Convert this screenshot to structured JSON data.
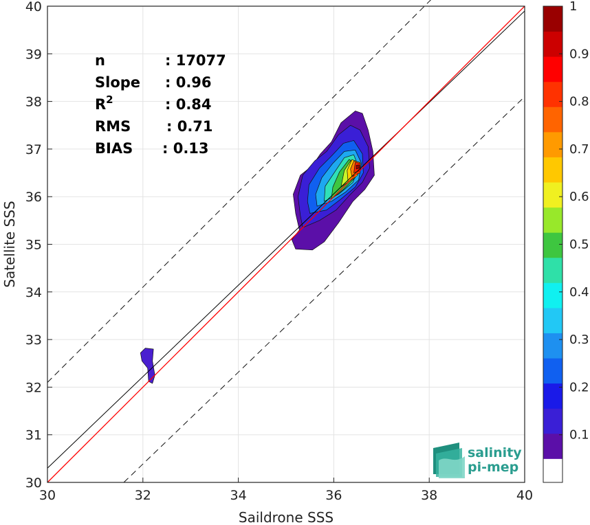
{
  "chart_data": {
    "type": "contour-scatter",
    "xlabel": "Saildrone SSS",
    "ylabel": "Satellite SSS",
    "xlim": [
      30,
      40
    ],
    "ylim": [
      30,
      40
    ],
    "xticks": [
      30,
      32,
      34,
      36,
      38,
      40
    ],
    "yticks": [
      30,
      31,
      32,
      33,
      34,
      35,
      36,
      37,
      38,
      39,
      40
    ],
    "grid": true,
    "stats": [
      {
        "key": "n",
        "sup": "",
        "value": ": 17077"
      },
      {
        "key": "Slope",
        "sup": "",
        "value": ": 0.96"
      },
      {
        "key": "R",
        "sup": "2",
        "value": ": 0.84"
      },
      {
        "key": "RMS",
        "sup": "",
        "value": ": 0.71"
      },
      {
        "key": "BIAS",
        "sup": "",
        "value": ": 0.13"
      }
    ],
    "lines": {
      "identity": {
        "from": [
          30,
          30
        ],
        "to": [
          40,
          40
        ],
        "color": "#ff0000"
      },
      "regression": {
        "from": [
          30,
          30.3
        ],
        "to": [
          40,
          39.9
        ],
        "color": "#000000"
      },
      "upper_bound": {
        "from": [
          30,
          32.1
        ],
        "to": [
          40,
          42.1
        ],
        "style": "dashed"
      },
      "lower_bound": {
        "from": [
          31.6,
          30
        ],
        "to": [
          40,
          38.1
        ],
        "style": "dashed"
      }
    },
    "contours": [
      {
        "level": 0.05,
        "color": "#5b0fa8",
        "points": [
          [
            35.2,
            34.9
          ],
          [
            35.55,
            34.88
          ],
          [
            35.8,
            35.05
          ],
          [
            36.1,
            35.45
          ],
          [
            36.4,
            35.9
          ],
          [
            36.65,
            36.15
          ],
          [
            36.85,
            36.45
          ],
          [
            36.82,
            36.95
          ],
          [
            36.72,
            37.4
          ],
          [
            36.6,
            37.75
          ],
          [
            36.45,
            37.8
          ],
          [
            36.15,
            37.55
          ],
          [
            35.95,
            37.15
          ],
          [
            35.72,
            36.9
          ],
          [
            35.55,
            36.65
          ],
          [
            35.3,
            36.45
          ],
          [
            35.15,
            36.05
          ],
          [
            35.2,
            35.65
          ],
          [
            35.28,
            35.3
          ],
          [
            35.12,
            35.1
          ]
        ]
      },
      {
        "level": 0.1,
        "color": "#3a1fd6",
        "points": [
          [
            35.35,
            35.35
          ],
          [
            35.7,
            35.5
          ],
          [
            36.05,
            35.72
          ],
          [
            36.35,
            36.05
          ],
          [
            36.6,
            36.3
          ],
          [
            36.75,
            36.6
          ],
          [
            36.72,
            37.05
          ],
          [
            36.55,
            37.4
          ],
          [
            36.35,
            37.5
          ],
          [
            36.1,
            37.3
          ],
          [
            35.85,
            36.95
          ],
          [
            35.6,
            36.75
          ],
          [
            35.35,
            36.45
          ],
          [
            35.25,
            36.0
          ],
          [
            35.3,
            35.6
          ]
        ]
      },
      {
        "level": 0.2,
        "color": "#1060f0",
        "points": [
          [
            35.5,
            35.65
          ],
          [
            35.85,
            35.72
          ],
          [
            36.15,
            35.95
          ],
          [
            36.45,
            36.2
          ],
          [
            36.62,
            36.5
          ],
          [
            36.6,
            36.9
          ],
          [
            36.42,
            37.18
          ],
          [
            36.2,
            37.12
          ],
          [
            35.95,
            36.85
          ],
          [
            35.7,
            36.6
          ],
          [
            35.48,
            36.25
          ],
          [
            35.45,
            35.9
          ]
        ]
      },
      {
        "level": 0.3,
        "color": "#1ea8f0",
        "points": [
          [
            35.65,
            35.8
          ],
          [
            35.95,
            35.9
          ],
          [
            36.25,
            36.1
          ],
          [
            36.52,
            36.35
          ],
          [
            36.58,
            36.7
          ],
          [
            36.45,
            36.98
          ],
          [
            36.22,
            36.95
          ],
          [
            35.98,
            36.7
          ],
          [
            35.75,
            36.4
          ],
          [
            35.62,
            36.05
          ]
        ]
      },
      {
        "level": 0.4,
        "color": "#2fe0b8",
        "points": [
          [
            35.8,
            35.9
          ],
          [
            36.1,
            36.05
          ],
          [
            36.4,
            36.3
          ],
          [
            36.52,
            36.62
          ],
          [
            36.42,
            36.88
          ],
          [
            36.22,
            36.82
          ],
          [
            36.02,
            36.52
          ],
          [
            35.82,
            36.22
          ]
        ]
      },
      {
        "level": 0.5,
        "color": "#3ec640",
        "points": [
          [
            35.95,
            35.95
          ],
          [
            36.2,
            36.15
          ],
          [
            36.45,
            36.4
          ],
          [
            36.48,
            36.7
          ],
          [
            36.32,
            36.78
          ],
          [
            36.12,
            36.52
          ],
          [
            35.98,
            36.2
          ]
        ]
      },
      {
        "level": 0.6,
        "color": "#c9f52a",
        "points": [
          [
            36.15,
            36.2
          ],
          [
            36.4,
            36.38
          ],
          [
            36.48,
            36.65
          ],
          [
            36.35,
            36.75
          ],
          [
            36.22,
            36.55
          ]
        ]
      },
      {
        "level": 0.7,
        "color": "#ffd000",
        "points": [
          [
            36.3,
            36.3
          ],
          [
            36.5,
            36.45
          ],
          [
            36.52,
            36.72
          ],
          [
            36.38,
            36.78
          ],
          [
            36.28,
            36.55
          ]
        ]
      },
      {
        "level": 0.8,
        "color": "#ff7a00",
        "points": [
          [
            36.38,
            36.42
          ],
          [
            36.55,
            36.5
          ],
          [
            36.55,
            36.72
          ],
          [
            36.42,
            36.75
          ],
          [
            36.35,
            36.58
          ]
        ]
      },
      {
        "level": 0.9,
        "color": "#ff2200",
        "points": [
          [
            36.42,
            36.5
          ],
          [
            36.55,
            36.55
          ],
          [
            36.56,
            36.7
          ],
          [
            36.45,
            36.72
          ]
        ]
      },
      {
        "level": 1.0,
        "color": "#9a0000",
        "points": [
          [
            36.47,
            36.58
          ],
          [
            36.54,
            36.6
          ],
          [
            36.54,
            36.67
          ],
          [
            36.47,
            36.66
          ]
        ]
      },
      {
        "level": 0.05,
        "color": "#4a1fd0",
        "points": [
          [
            31.95,
            32.72
          ],
          [
            32.05,
            32.82
          ],
          [
            32.22,
            32.8
          ],
          [
            32.2,
            32.55
          ],
          [
            32.25,
            32.25
          ],
          [
            32.2,
            32.08
          ],
          [
            32.12,
            32.12
          ],
          [
            32.1,
            32.4
          ],
          [
            31.98,
            32.55
          ]
        ]
      }
    ],
    "colorbar": {
      "ticks": [
        0.1,
        0.2,
        0.3,
        0.4,
        0.5,
        0.6,
        0.7,
        0.8,
        0.9,
        1
      ],
      "colors": [
        "#5b0fa8",
        "#3a1fd6",
        "#1a1ae8",
        "#1060f0",
        "#1e90f0",
        "#22c8f5",
        "#10f0f0",
        "#2fe0a8",
        "#3ec640",
        "#98e82a",
        "#f0f020",
        "#ffc800",
        "#ff9a00",
        "#ff6400",
        "#ff3200",
        "#ff0000",
        "#cc0000",
        "#990000"
      ]
    }
  },
  "logo": {
    "line1": "salinity",
    "line2": "pi-mep",
    "color": "#2a9d8f"
  }
}
